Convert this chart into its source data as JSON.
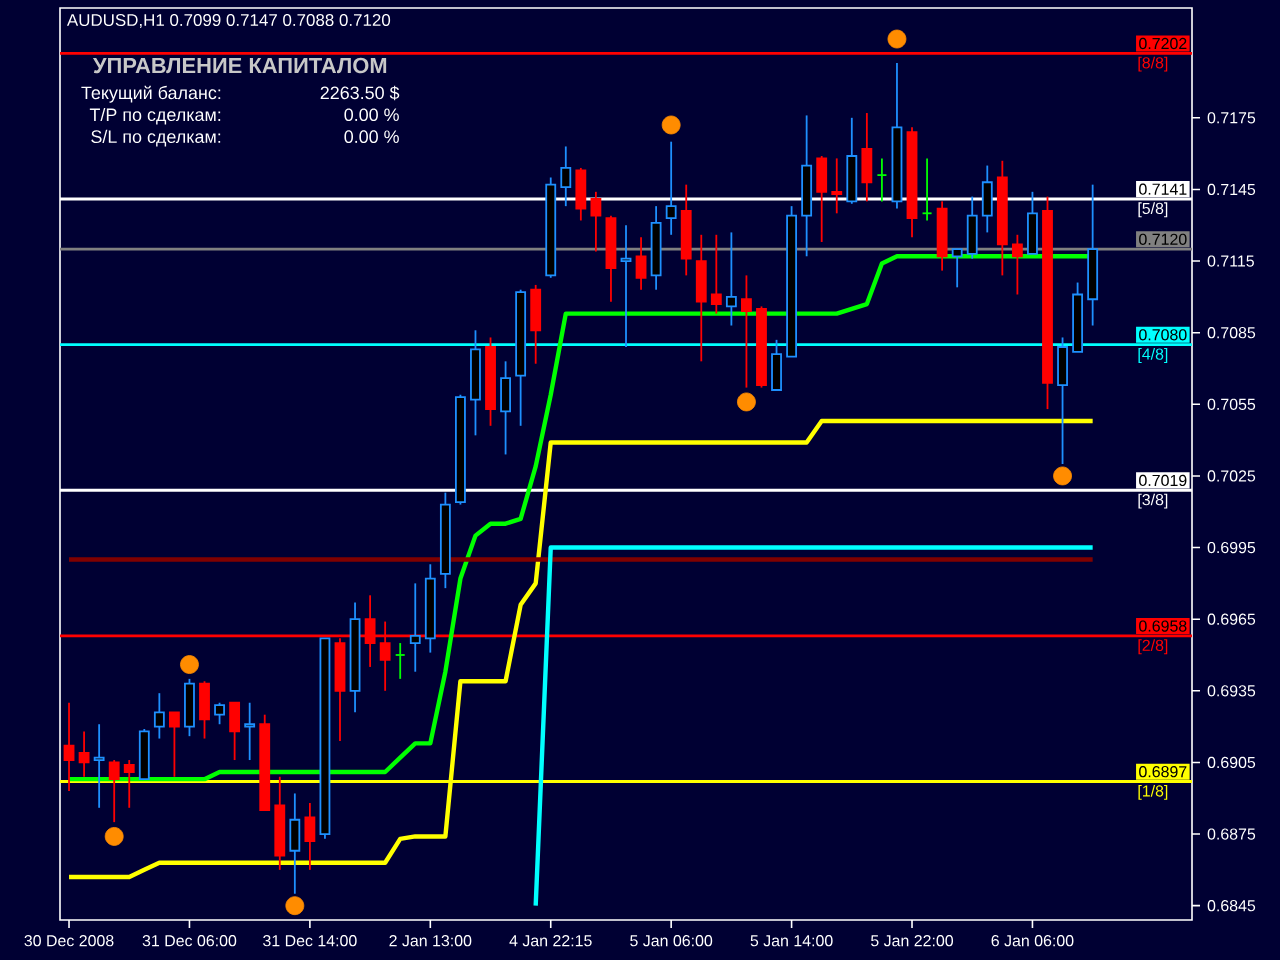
{
  "chart_data": {
    "type": "candlestick",
    "title": "AUDUSD,H1 0.7099 0.7147 0.7088 0.7120",
    "categories": [
      "30 Dec 2008",
      null,
      null,
      null,
      null,
      null,
      null,
      null,
      "31 Dec 06:00",
      null,
      null,
      null,
      null,
      null,
      null,
      null,
      "31 Dec 14:00",
      null,
      null,
      null,
      null,
      null,
      null,
      null,
      "2 Jan 13:00",
      null,
      null,
      null,
      null,
      null,
      null,
      null,
      "4 Jan 22:15",
      null,
      null,
      null,
      null,
      null,
      null,
      null,
      "5 Jan 06:00",
      null,
      null,
      null,
      null,
      null,
      null,
      null,
      "5 Jan 14:00",
      null,
      null,
      null,
      null,
      null,
      null,
      null,
      "5 Jan 22:00",
      null,
      null,
      null,
      null,
      null,
      null,
      null,
      "6 Jan 06:00",
      null,
      null,
      null,
      null,
      null,
      null,
      null,
      null,
      null,
      null
    ],
    "ohlc": [
      [
        0.6912,
        0.693,
        0.6893,
        0.6906
      ],
      [
        0.6909,
        0.6918,
        0.6899,
        0.6905
      ],
      [
        0.6906,
        0.6921,
        0.6886,
        0.6907
      ],
      [
        0.6905,
        0.6906,
        0.688,
        0.6898
      ],
      [
        0.6904,
        0.6906,
        0.6886,
        0.6901
      ],
      [
        0.6898,
        0.6919,
        0.6898,
        0.6918
      ],
      [
        0.692,
        0.6934,
        0.6915,
        0.6926
      ],
      [
        0.6926,
        0.6926,
        0.6899,
        0.692
      ],
      [
        0.692,
        0.694,
        0.6916,
        0.6938
      ],
      [
        0.6938,
        0.6939,
        0.6915,
        0.6923
      ],
      [
        0.6925,
        0.693,
        0.6921,
        0.6929
      ],
      [
        0.693,
        0.693,
        0.6906,
        0.6918
      ],
      [
        0.692,
        0.693,
        0.6906,
        0.6921
      ],
      [
        0.6921,
        0.6925,
        0.6885,
        0.6885
      ],
      [
        0.6887,
        0.6899,
        0.686,
        0.6866
      ],
      [
        0.6868,
        0.6892,
        0.685,
        0.6881
      ],
      [
        0.6882,
        0.6888,
        0.686,
        0.6872
      ],
      [
        0.6875,
        0.6957,
        0.6873,
        0.6957
      ],
      [
        0.6955,
        0.6957,
        0.6914,
        0.6935
      ],
      [
        0.6935,
        0.6972,
        0.6926,
        0.6965
      ],
      [
        0.6965,
        0.6975,
        0.6945,
        0.6955
      ],
      [
        0.6955,
        0.6964,
        0.6935,
        0.6948
      ],
      [
        0.695,
        0.6955,
        0.694,
        0.695
      ],
      [
        0.6955,
        0.698,
        0.6943,
        0.6958
      ],
      [
        0.6957,
        0.6988,
        0.6951,
        0.6982
      ],
      [
        0.6984,
        0.7018,
        0.6978,
        0.7013
      ],
      [
        0.7014,
        0.7059,
        0.7013,
        0.7058
      ],
      [
        0.7057,
        0.7086,
        0.7042,
        0.7078
      ],
      [
        0.7079,
        0.7083,
        0.7046,
        0.7053
      ],
      [
        0.7052,
        0.7073,
        0.7034,
        0.7066
      ],
      [
        0.7067,
        0.7103,
        0.7046,
        0.7102
      ],
      [
        0.7103,
        0.7105,
        0.7072,
        0.7086
      ],
      [
        0.7109,
        0.715,
        0.7108,
        0.7147
      ],
      [
        0.7146,
        0.7163,
        0.7138,
        0.7154
      ],
      [
        0.7153,
        0.7154,
        0.7132,
        0.7137
      ],
      [
        0.7141,
        0.7144,
        0.7119,
        0.7134
      ],
      [
        0.7133,
        0.7134,
        0.7098,
        0.7112
      ],
      [
        0.7115,
        0.713,
        0.7079,
        0.7116
      ],
      [
        0.7117,
        0.7125,
        0.7103,
        0.7108
      ],
      [
        0.7109,
        0.7138,
        0.7103,
        0.7131
      ],
      [
        0.7133,
        0.7165,
        0.7126,
        0.7138
      ],
      [
        0.7136,
        0.7147,
        0.7109,
        0.7116
      ],
      [
        0.7115,
        0.7126,
        0.7073,
        0.7098
      ],
      [
        0.7101,
        0.7126,
        0.7093,
        0.7097
      ],
      [
        0.7096,
        0.7127,
        0.7088,
        0.71
      ],
      [
        0.7099,
        0.7109,
        0.7062,
        0.7094
      ],
      [
        0.7095,
        0.7096,
        0.7062,
        0.7063
      ],
      [
        0.7061,
        0.7082,
        0.7061,
        0.7076
      ],
      [
        0.7075,
        0.7138,
        0.7075,
        0.7134
      ],
      [
        0.7134,
        0.7176,
        0.7117,
        0.7155
      ],
      [
        0.7158,
        0.7159,
        0.7123,
        0.7144
      ],
      [
        0.7144,
        0.7158,
        0.7135,
        0.7143
      ],
      [
        0.714,
        0.7175,
        0.7139,
        0.7159
      ],
      [
        0.7162,
        0.7177,
        0.714,
        0.7148
      ],
      [
        0.7151,
        0.7158,
        0.714,
        0.7151
      ],
      [
        0.714,
        0.7198,
        0.7137,
        0.7171
      ],
      [
        0.7169,
        0.7171,
        0.7125,
        0.7133
      ],
      [
        0.7135,
        0.7158,
        0.7132,
        0.7135
      ],
      [
        0.7137,
        0.714,
        0.7111,
        0.7117
      ],
      [
        0.7117,
        0.712,
        0.7104,
        0.712
      ],
      [
        0.7118,
        0.7142,
        0.7116,
        0.7134
      ],
      [
        0.7134,
        0.7155,
        0.7127,
        0.7148
      ],
      [
        0.715,
        0.7157,
        0.7109,
        0.7122
      ],
      [
        0.7122,
        0.7126,
        0.7101,
        0.7117
      ],
      [
        0.7118,
        0.7144,
        0.7118,
        0.7135
      ],
      [
        0.7136,
        0.7142,
        0.7053,
        0.7064
      ],
      [
        0.7063,
        0.7083,
        0.703,
        0.7079
      ],
      [
        0.7077,
        0.7106,
        0.7077,
        0.7101
      ],
      [
        0.7099,
        0.7147,
        0.7088,
        0.712
      ],
      null,
      null,
      null,
      null,
      null,
      null
    ],
    "colors": [
      "#ff0000",
      "#ff0000",
      "#1e90ff",
      "#ff0000",
      "#ff0000",
      "#1e90ff",
      "#1e90ff",
      "#ff0000",
      "#1e90ff",
      "#ff0000",
      "#1e90ff",
      "#ff0000",
      "#1e90ff",
      "#ff0000",
      "#ff0000",
      "#1e90ff",
      "#ff0000",
      "#1e90ff",
      "#ff0000",
      "#1e90ff",
      "#ff0000",
      "#ff0000",
      "#00ff00",
      "#1e90ff",
      "#1e90ff",
      "#1e90ff",
      "#1e90ff",
      "#1e90ff",
      "#ff0000",
      "#1e90ff",
      "#1e90ff",
      "#ff0000",
      "#1e90ff",
      "#1e90ff",
      "#ff0000",
      "#ff0000",
      "#ff0000",
      "#1e90ff",
      "#ff0000",
      "#1e90ff",
      "#1e90ff",
      "#ff0000",
      "#ff0000",
      "#ff0000",
      "#1e90ff",
      "#ff0000",
      "#ff0000",
      "#1e90ff",
      "#1e90ff",
      "#1e90ff",
      "#ff0000",
      "#ff0000",
      "#1e90ff",
      "#ff0000",
      "#00ff00",
      "#1e90ff",
      "#ff0000",
      "#00ff00",
      "#ff0000",
      "#1e90ff",
      "#1e90ff",
      "#1e90ff",
      "#ff0000",
      "#ff0000",
      "#1e90ff",
      "#ff0000",
      "#1e90ff",
      "#1e90ff",
      "#1e90ff",
      null,
      null,
      null,
      null,
      null,
      null
    ],
    "series": [
      {
        "type": "line",
        "color": "#00ff00",
        "values": [
          0.6898,
          0.6898,
          0.6898,
          0.6898,
          0.6898,
          0.6898,
          0.6898,
          0.6898,
          0.6898,
          0.6898,
          0.6901,
          0.6901,
          0.6901,
          0.6901,
          0.6901,
          0.6901,
          0.6901,
          0.6901,
          0.6901,
          0.6901,
          0.6901,
          0.6901,
          0.6907,
          0.6913,
          0.6913,
          0.6943,
          0.6982,
          0.7,
          0.7005,
          0.7005,
          0.7007,
          0.7029,
          0.7059,
          0.7093,
          0.7093,
          0.7093,
          0.7093,
          0.7093,
          0.7093,
          0.7093,
          0.7093,
          0.7093,
          0.7093,
          0.7093,
          0.7093,
          0.7093,
          0.7093,
          0.7093,
          0.7093,
          0.7093,
          0.7093,
          0.7093,
          0.7095,
          0.7097,
          0.7114,
          0.7117,
          0.7117,
          0.7117,
          0.7117,
          0.7117,
          0.7117,
          0.7117,
          0.7117,
          0.7117,
          0.7117,
          0.7117,
          0.7117,
          0.7117,
          0.7117,
          null,
          null,
          null,
          null,
          null,
          null
        ]
      },
      {
        "type": "line",
        "color": "#ffff00",
        "values": [
          0.6857,
          0.6857,
          0.6857,
          0.6857,
          0.6857,
          0.686,
          0.6863,
          0.6863,
          0.6863,
          0.6863,
          0.6863,
          0.6863,
          0.6863,
          0.6863,
          0.6863,
          0.6863,
          0.6863,
          0.6863,
          0.6863,
          0.6863,
          0.6863,
          0.6863,
          0.6873,
          0.6874,
          0.6874,
          0.6874,
          0.6939,
          0.6939,
          0.6939,
          0.6939,
          0.6971,
          0.698,
          0.7039,
          0.7039,
          0.7039,
          0.7039,
          0.7039,
          0.7039,
          0.7039,
          0.7039,
          0.7039,
          0.7039,
          0.7039,
          0.7039,
          0.7039,
          0.7039,
          0.7039,
          0.7039,
          0.7039,
          0.7039,
          0.7048,
          0.7048,
          0.7048,
          0.7048,
          0.7048,
          0.7048,
          0.7048,
          0.7048,
          0.7048,
          0.7048,
          0.7048,
          0.7048,
          0.7048,
          0.7048,
          0.7048,
          0.7048,
          0.7048,
          0.7048,
          0.7048,
          null,
          null,
          null,
          null,
          null,
          null
        ]
      },
      {
        "type": "line",
        "color": "#800000",
        "values": [
          0.699,
          0.699,
          0.699,
          0.699,
          0.699,
          0.699,
          0.699,
          0.699,
          0.699,
          0.699,
          0.699,
          0.699,
          0.699,
          0.699,
          0.699,
          0.699,
          0.699,
          0.699,
          0.699,
          0.699,
          0.699,
          0.699,
          0.699,
          0.699,
          0.699,
          0.699,
          0.699,
          0.699,
          0.699,
          0.699,
          0.699,
          0.699,
          0.699,
          0.699,
          0.699,
          0.699,
          0.699,
          0.699,
          0.699,
          0.699,
          0.699,
          0.699,
          0.699,
          0.699,
          0.699,
          0.699,
          0.699,
          0.699,
          0.699,
          0.699,
          0.699,
          0.699,
          0.699,
          0.699,
          0.699,
          0.699,
          0.699,
          0.699,
          0.699,
          0.699,
          0.699,
          0.699,
          0.699,
          0.699,
          0.699,
          0.699,
          0.699,
          0.699,
          0.699,
          null,
          null,
          null,
          null,
          null,
          null
        ]
      },
      {
        "type": "line",
        "color": "#00ffff",
        "values": [
          null,
          null,
          null,
          null,
          null,
          null,
          null,
          null,
          null,
          null,
          null,
          null,
          null,
          null,
          null,
          null,
          null,
          null,
          null,
          null,
          null,
          null,
          null,
          null,
          null,
          null,
          null,
          null,
          null,
          null,
          null,
          0.6845,
          0.6995,
          0.6995,
          0.6995,
          0.6995,
          0.6995,
          0.6995,
          0.6995,
          0.6995,
          0.6995,
          0.6995,
          0.6995,
          0.6995,
          0.6995,
          0.6995,
          0.6995,
          0.6995,
          0.6995,
          0.6995,
          0.6995,
          0.6995,
          0.6995,
          0.6995,
          0.6995,
          0.6995,
          0.6995,
          0.6995,
          0.6995,
          0.6995,
          0.6995,
          0.6995,
          0.6995,
          0.6995,
          0.6995,
          0.6995,
          0.6995,
          0.6995,
          0.6995,
          null,
          null,
          null,
          null,
          null,
          null
        ]
      },
      {
        "type": "scatter",
        "color": "#ff8c00",
        "marker": "circle",
        "values": [
          null,
          null,
          null,
          0.6874,
          null,
          null,
          null,
          null,
          0.6946,
          null,
          null,
          null,
          null,
          null,
          null,
          0.6845,
          null,
          null,
          null,
          null,
          null,
          null,
          null,
          null,
          null,
          null,
          null,
          null,
          null,
          null,
          null,
          null,
          null,
          null,
          null,
          null,
          null,
          null,
          null,
          null,
          0.7172,
          null,
          null,
          null,
          null,
          0.7056,
          null,
          null,
          null,
          null,
          null,
          null,
          null,
          null,
          null,
          0.7208,
          null,
          null,
          null,
          null,
          null,
          null,
          null,
          null,
          null,
          null,
          0.7025,
          null,
          null,
          null,
          null,
          null,
          null,
          null,
          null
        ]
      }
    ],
    "ylim": [
      0.6839,
      0.7221
    ],
    "yticks": [
      0.6845,
      0.6875,
      0.6905,
      0.6935,
      0.6965,
      0.6995,
      0.7025,
      0.7055,
      0.7085,
      0.7115,
      0.7145,
      0.7175
    ],
    "ref_lines": [
      {
        "axis": "y",
        "value": 0.7202,
        "label": "0.7202",
        "color": "#ff0000"
      },
      {
        "axis": "y",
        "value": 0.7141,
        "label": "0.7141",
        "color": "#ffffff"
      },
      {
        "axis": "y",
        "value": 0.712,
        "label": "0.7120",
        "color": "#808080"
      },
      {
        "axis": "y",
        "value": 0.708,
        "label": "0.7080",
        "color": "#00ffff"
      },
      {
        "axis": "y",
        "value": 0.7019,
        "label": "0.7019",
        "color": "#ffffff"
      },
      {
        "axis": "y",
        "value": 0.6958,
        "label": "0.6958",
        "color": "#ff0000"
      },
      {
        "axis": "y",
        "value": 0.6897,
        "label": "0.6897",
        "color": "#ffff00"
      }
    ],
    "annotations": [
      "УПРАВЛЕНИЕ КАПИТАЛОМ",
      "Текущий баланс:",
      "2263.50 $",
      "T/P по сделкам:",
      "0.00 %",
      "S/L по сделкам:",
      "0.00 %",
      {
        "text": "[8/8]",
        "y": 0.7202
      },
      {
        "text": "[5/8]",
        "y": 0.7141
      },
      {
        "text": "[4/8]",
        "y": 0.708
      },
      {
        "text": "[3/8]",
        "y": 0.7019
      },
      {
        "text": "[2/8]",
        "y": 0.6958
      },
      {
        "text": "[1/8]",
        "y": 0.6897
      }
    ]
  }
}
